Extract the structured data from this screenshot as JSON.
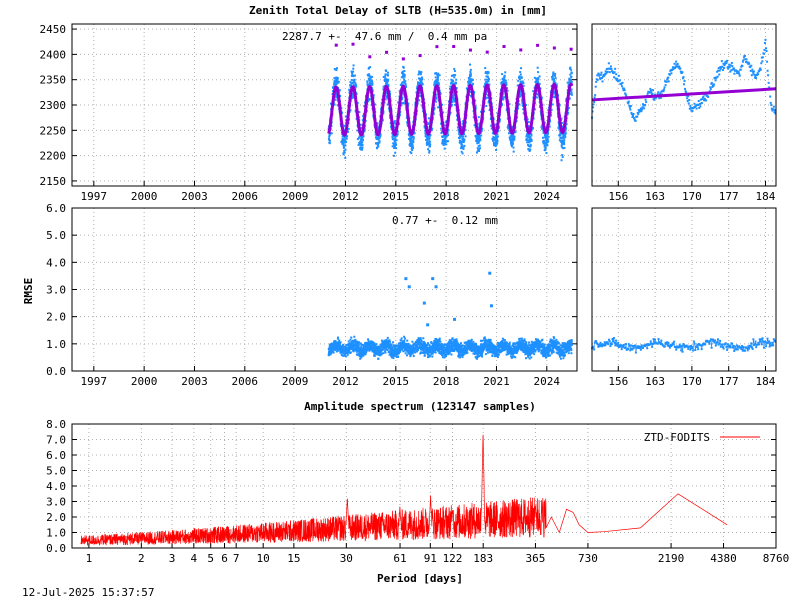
{
  "title": "Zenith Total Delay of SLTB (H=535.0m) in [mm]",
  "timestamp": "12-Jul-2025 15:37:57",
  "colors": {
    "ztd": "#1e90ff",
    "model": "#9400d3",
    "spectrum": "#ff0000",
    "frame": "#000000",
    "grid": "#b0b0b0"
  },
  "chart_data": [
    {
      "type": "scatter",
      "id": "ztd_full",
      "annotation": "2287.7 +-  47.6 mm /  0.4 mm pa",
      "xlabel": "",
      "ylabel": "",
      "xlim": [
        1995.7,
        2025.8
      ],
      "ylim": [
        2140,
        2460
      ],
      "x_ticks": [
        "1997",
        "2000",
        "2003",
        "2006",
        "2009",
        "2012",
        "2015",
        "2018",
        "2021",
        "2024"
      ],
      "y_ticks": [
        "2150",
        "2200",
        "2250",
        "2300",
        "2350",
        "2400",
        "2450"
      ],
      "series": [
        {
          "kind": "observed",
          "x_start": 2011.0,
          "x_end": 2025.5,
          "mean": 2287.7,
          "seasonal_amplitude": 47.6,
          "noise": 22,
          "period_years": 1.0,
          "color": "#1e90ff"
        },
        {
          "kind": "model",
          "x_start": 2011.0,
          "x_end": 2025.5,
          "mean": 2287.7,
          "seasonal_amplitude": 47.6,
          "trend_mm_pa": 0.4,
          "color": "#9400d3"
        }
      ]
    },
    {
      "type": "scatter",
      "id": "ztd_zoom",
      "xlim": [
        151,
        186
      ],
      "ylim": [
        2140,
        2460
      ],
      "x_ticks": [
        "156",
        "163",
        "170",
        "177",
        "184"
      ],
      "series": [
        {
          "kind": "observed",
          "x_start": 151,
          "x_end": 186,
          "color": "#1e90ff",
          "points": [
            [
              151,
              2275
            ],
            [
              152,
              2360
            ],
            [
              153,
              2350
            ],
            [
              154,
              2375
            ],
            [
              155,
              2365
            ],
            [
              156,
              2350
            ],
            [
              157,
              2335
            ],
            [
              158,
              2300
            ],
            [
              159,
              2275
            ],
            [
              160,
              2285
            ],
            [
              161,
              2300
            ],
            [
              162,
              2330
            ],
            [
              163,
              2315
            ],
            [
              164,
              2320
            ],
            [
              165,
              2340
            ],
            [
              166,
              2365
            ],
            [
              167,
              2380
            ],
            [
              168,
              2370
            ],
            [
              169,
              2320
            ],
            [
              170,
              2290
            ],
            [
              171,
              2300
            ],
            [
              172,
              2310
            ],
            [
              173,
              2320
            ],
            [
              174,
              2340
            ],
            [
              175,
              2365
            ],
            [
              176,
              2380
            ],
            [
              177,
              2375
            ],
            [
              178,
              2370
            ],
            [
              179,
              2360
            ],
            [
              180,
              2395
            ],
            [
              181,
              2380
            ],
            [
              182,
              2355
            ],
            [
              183,
              2370
            ],
            [
              184,
              2425
            ],
            [
              185,
              2300
            ],
            [
              186,
              2290
            ]
          ]
        },
        {
          "kind": "model",
          "x_start": 151,
          "x_end": 186,
          "y_start": 2310,
          "y_end": 2332,
          "color": "#9400d3"
        }
      ]
    },
    {
      "type": "scatter",
      "id": "rmse_full",
      "ylabel": "RMSE",
      "annotation": "0.77 +-  0.12 mm",
      "xlim": [
        1995.7,
        2025.8
      ],
      "ylim": [
        0,
        6
      ],
      "x_ticks": [
        "1997",
        "2000",
        "2003",
        "2006",
        "2009",
        "2012",
        "2015",
        "2018",
        "2021",
        "2024"
      ],
      "y_ticks": [
        "0.0",
        "1.0",
        "2.0",
        "3.0",
        "4.0",
        "5.0",
        "6.0"
      ],
      "series": [
        {
          "kind": "observed",
          "x_start": 2011.0,
          "x_end": 2025.5,
          "mean": 0.85,
          "noise": 0.18,
          "color": "#1e90ff",
          "outliers": [
            [
              2015.6,
              3.4
            ],
            [
              2015.8,
              3.1
            ],
            [
              2016.7,
              2.5
            ],
            [
              2016.9,
              1.7
            ],
            [
              2017.2,
              3.4
            ],
            [
              2017.4,
              3.1
            ],
            [
              2018.5,
              1.9
            ],
            [
              2020.6,
              3.6
            ],
            [
              2020.7,
              2.4
            ]
          ]
        }
      ]
    },
    {
      "type": "scatter",
      "id": "rmse_zoom",
      "xlim": [
        151,
        186
      ],
      "ylim": [
        0,
        6
      ],
      "x_ticks": [
        "156",
        "163",
        "170",
        "177",
        "184"
      ],
      "series": [
        {
          "kind": "observed",
          "x_start": 151,
          "x_end": 186,
          "mean": 0.95,
          "noise": 0.2,
          "color": "#1e90ff"
        }
      ]
    },
    {
      "type": "line",
      "id": "spectrum",
      "title": "Amplitude spectrum (123147 samples)",
      "xlabel": "Period [days]",
      "ylabel": "",
      "x_scale": "log",
      "xlim": [
        0.8,
        8760
      ],
      "ylim": [
        0,
        8
      ],
      "x_ticks": [
        "1",
        "2",
        "3",
        "4",
        "5",
        "6",
        "7",
        "10",
        "15",
        "30",
        "61",
        "91",
        "122",
        "183",
        "365",
        "730",
        "2190",
        "4380",
        "8760"
      ],
      "y_ticks": [
        "0.0",
        "1.0",
        "2.0",
        "3.0",
        "4.0",
        "5.0",
        "6.0",
        "7.0",
        "8.0"
      ],
      "legend": "top-right",
      "series": [
        {
          "name": "ZTD-FODITS",
          "color": "#ff0000",
          "peaks": [
            [
              182.6,
              7.2
            ],
            [
              91.3,
              3.1
            ],
            [
              60.9,
              2.4
            ],
            [
              30.4,
              3.0
            ],
            [
              365,
              2.5
            ],
            [
              2400,
              3.5
            ],
            [
              4600,
              1.5
            ],
            [
              730,
              1.0
            ],
            [
              1460,
              1.3
            ],
            [
              122,
              2.2
            ]
          ]
        }
      ]
    }
  ]
}
